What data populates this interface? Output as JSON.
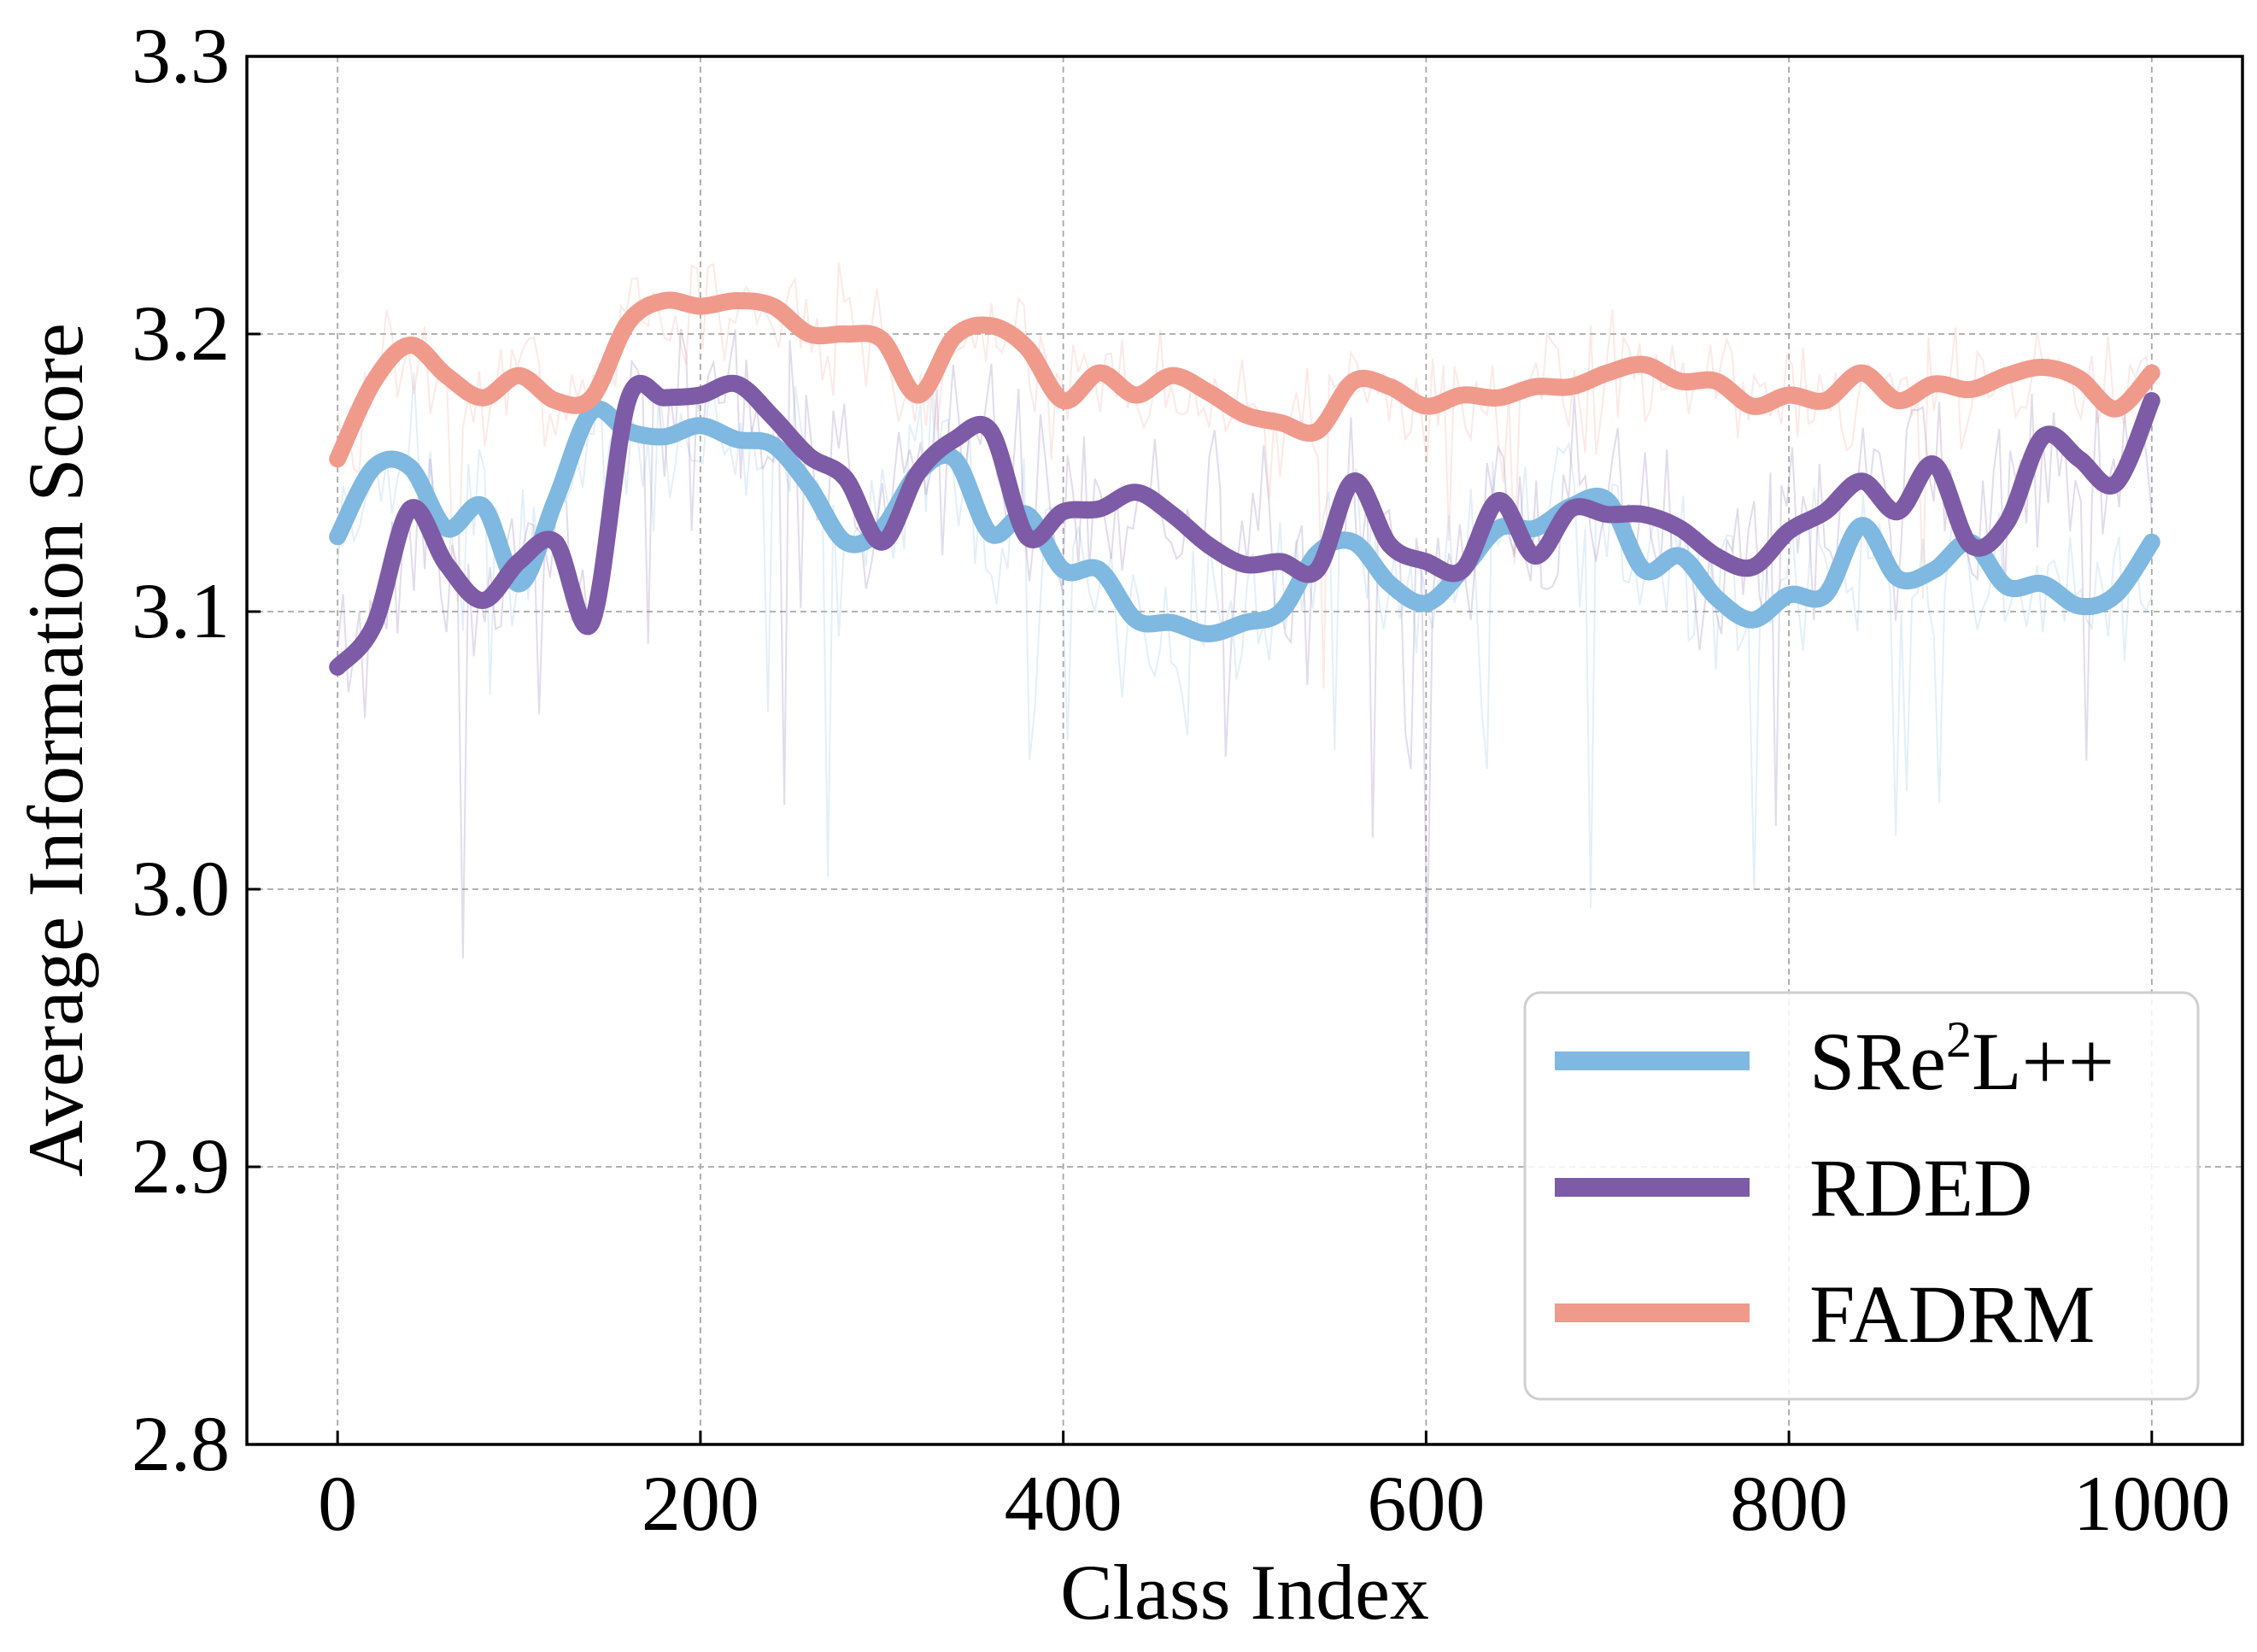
{
  "chart_data": {
    "type": "line",
    "title": "",
    "xlabel": "Class Index",
    "ylabel": "Average Information Score",
    "xlim": [
      -50,
      1050
    ],
    "ylim": [
      2.8,
      3.3
    ],
    "xticks": [
      0,
      200,
      400,
      600,
      800,
      1000
    ],
    "xtick_labels": [
      "0",
      "200",
      "400",
      "600",
      "800",
      "1000"
    ],
    "yticks": [
      2.8,
      2.9,
      3.0,
      3.1,
      3.2,
      3.3
    ],
    "ytick_labels": [
      "2.8",
      "2.9",
      "3.0",
      "3.1",
      "3.2",
      "3.3"
    ],
    "grid": true,
    "legend_position": "bottom-right",
    "x": [
      0,
      20,
      40,
      60,
      80,
      100,
      120,
      140,
      160,
      180,
      200,
      220,
      240,
      260,
      280,
      300,
      320,
      340,
      360,
      380,
      400,
      420,
      440,
      460,
      480,
      500,
      520,
      540,
      560,
      580,
      600,
      620,
      640,
      660,
      680,
      700,
      720,
      740,
      760,
      780,
      800,
      820,
      840,
      860,
      880,
      900,
      920,
      940,
      960,
      980,
      1000
    ],
    "series": [
      {
        "name": "SRe²L++",
        "legend_main": "SRe",
        "legend_sup": "2",
        "legend_tail": "L++",
        "color": "#7fb8e0",
        "values": [
          3.127,
          3.152,
          3.152,
          3.13,
          3.138,
          3.11,
          3.14,
          3.172,
          3.165,
          3.163,
          3.167,
          3.162,
          3.16,
          3.145,
          3.125,
          3.13,
          3.15,
          3.155,
          3.128,
          3.135,
          3.115,
          3.115,
          3.097,
          3.096,
          3.092,
          3.096,
          3.1,
          3.121,
          3.125,
          3.11,
          3.103,
          3.115,
          3.13,
          3.13,
          3.138,
          3.14,
          3.115,
          3.12,
          3.105,
          3.097,
          3.106,
          3.106,
          3.131,
          3.112,
          3.115,
          3.125,
          3.109,
          3.11,
          3.102,
          3.106,
          3.125
        ]
      },
      {
        "name": "RDED",
        "legend_main": "RDED",
        "legend_sup": "",
        "legend_tail": "",
        "color": "#7d5ba6",
        "values": [
          3.08,
          3.095,
          3.137,
          3.117,
          3.104,
          3.118,
          3.125,
          3.096,
          3.176,
          3.177,
          3.178,
          3.182,
          3.17,
          3.156,
          3.148,
          3.125,
          3.15,
          3.162,
          3.165,
          3.127,
          3.136,
          3.137,
          3.143,
          3.135,
          3.124,
          3.117,
          3.118,
          3.115,
          3.147,
          3.124,
          3.118,
          3.115,
          3.14,
          3.12,
          3.137,
          3.135,
          3.135,
          3.13,
          3.12,
          3.116,
          3.129,
          3.136,
          3.147,
          3.136,
          3.153,
          3.124,
          3.132,
          3.163,
          3.155,
          3.146,
          3.176
        ]
      },
      {
        "name": "FADRM",
        "legend_main": "FADRM",
        "legend_sup": "",
        "legend_tail": "",
        "color": "#f09a8c",
        "values": [
          3.155,
          3.183,
          3.196,
          3.185,
          3.177,
          3.185,
          3.176,
          3.177,
          3.204,
          3.212,
          3.21,
          3.212,
          3.21,
          3.2,
          3.2,
          3.198,
          3.178,
          3.199,
          3.203,
          3.195,
          3.176,
          3.186,
          3.178,
          3.185,
          3.179,
          3.171,
          3.168,
          3.165,
          3.183,
          3.181,
          3.174,
          3.178,
          3.177,
          3.181,
          3.181,
          3.186,
          3.189,
          3.183,
          3.183,
          3.174,
          3.178,
          3.176,
          3.186,
          3.176,
          3.182,
          3.18,
          3.185,
          3.188,
          3.184,
          3.173,
          3.186
        ]
      }
    ]
  }
}
